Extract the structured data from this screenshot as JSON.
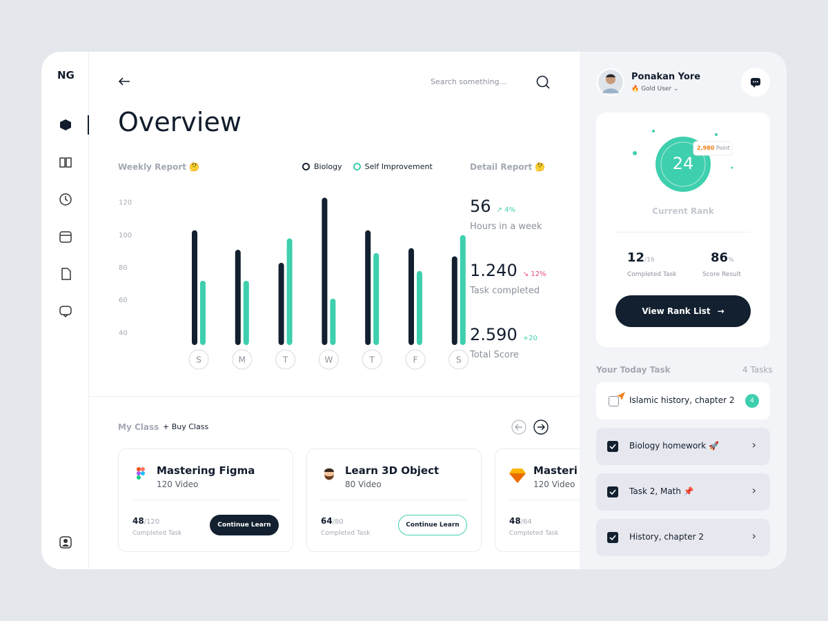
{
  "brand": "NG",
  "search": "Search something...",
  "title": "Overview",
  "chart_data": {
    "type": "bar",
    "title": "Weekly Report 🤔",
    "categories": [
      "S",
      "M",
      "T",
      "W",
      "T",
      "F",
      "S"
    ],
    "series": [
      {
        "name": "Biology",
        "color": "#12202f",
        "values": [
          103,
          91,
          83,
          123,
          103,
          92,
          87
        ]
      },
      {
        "name": "Self Improvement",
        "color": "#3ecfae",
        "values": [
          72,
          72,
          98,
          61,
          89,
          78,
          100
        ]
      }
    ],
    "ylim": [
      30,
      130
    ],
    "yticks": [
      40,
      60,
      80,
      100,
      120
    ]
  },
  "detail": {
    "title": "Detail Report 🤔",
    "items": [
      {
        "value": "56",
        "change": "4%",
        "label": "Hours in a week"
      },
      {
        "value": "1.240",
        "change": "12%",
        "label": "Task completed"
      },
      {
        "value": "2.590",
        "change": "+20",
        "label": "Total Score"
      }
    ]
  },
  "classes": {
    "title": "My Class",
    "buy": "Buy Class",
    "items": [
      {
        "title": "Mastering Figma",
        "videos": "120 Video",
        "done": "48",
        "total": "/120",
        "caption": "Completed Task",
        "button": "Continue Learn"
      },
      {
        "title": "Learn 3D Object",
        "videos": "80 Video",
        "done": "64",
        "total": "/80",
        "caption": "Completed Task",
        "button": "Continue Learn"
      },
      {
        "title": "Masteri",
        "videos": "120 Video",
        "done": "48",
        "total": "/64",
        "caption": "Completed Task"
      }
    ]
  },
  "profile": {
    "name": "Ponakan Yore",
    "level": "Gold User"
  },
  "rank": {
    "rank": "24",
    "points": "2,980",
    "points_unit": "Point",
    "label": "Current Rank",
    "tasks": "12",
    "tasks_total": "/16",
    "tasks_label": "Completed Task",
    "score": "86",
    "score_unit": "%",
    "score_label": "Score Result",
    "button": "View Rank List"
  },
  "today": {
    "title": "Your Today Task",
    "count": "4 Tasks",
    "items": [
      {
        "title": "Islamic history, chapter 2",
        "badge": "4"
      },
      {
        "title": "Biology homework 🚀"
      },
      {
        "title": "Task 2, Math 📌"
      },
      {
        "title": "History, chapter 2"
      }
    ]
  }
}
